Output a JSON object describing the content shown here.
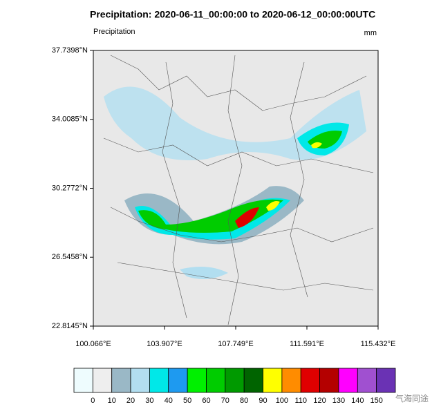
{
  "header": {
    "title": "Precipitation: 2020-06-11_00:00:00 to 2020-06-12_00:00:00UTC",
    "left_label": "Precipitation",
    "right_label": "mm"
  },
  "map": {
    "lat_ticks": [
      "37.7398°N",
      "34.0085°N",
      "30.2772°N",
      "26.5458°N",
      "22.8145°N"
    ],
    "lon_ticks": [
      "100.066°E",
      "103.907°E",
      "107.749°E",
      "111.591°E",
      "115.432°E"
    ]
  },
  "colorbar": {
    "levels": [
      0,
      10,
      20,
      30,
      40,
      50,
      60,
      70,
      80,
      90,
      100,
      110,
      120,
      130,
      140,
      150
    ],
    "colors": [
      "#eefcfe",
      "#eeeeee",
      "#9ab8c6",
      "#b2def0",
      "#00e8e8",
      "#1e9af0",
      "#00f000",
      "#00cc00",
      "#009a00",
      "#006400",
      "#ffff00",
      "#ff8c00",
      "#e00000",
      "#b40000",
      "#ff00ff",
      "#a050d0",
      "#6a32b4"
    ]
  },
  "watermark": "气海同途"
}
